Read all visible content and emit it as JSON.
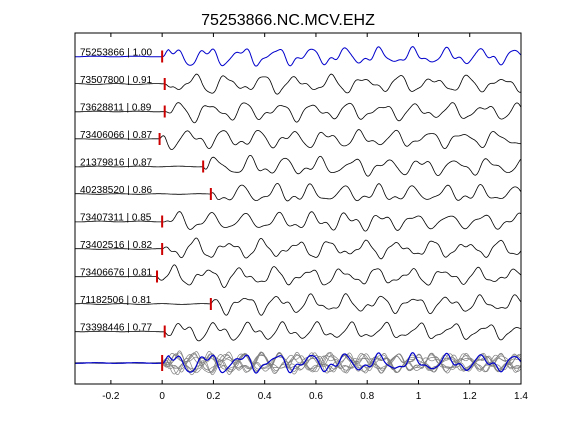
{
  "window": {
    "title": "75253866.NC.MCV.EHZ"
  },
  "chart_data": {
    "type": "line",
    "title": "75253866.NC.MCV.EHZ",
    "xlabel": "",
    "ylabel": "",
    "xlim": [
      -0.34,
      1.4
    ],
    "xticks": [
      -0.2,
      0,
      0.2,
      0.4,
      0.6,
      0.8,
      1,
      1.2,
      1.4
    ],
    "xtick_labels": [
      "-0.2",
      "0",
      "0.2",
      "0.4",
      "0.6",
      "0.8",
      "1",
      "1.2",
      "1.4"
    ],
    "grid": false,
    "colors": {
      "reference": "#0000cc",
      "trace": "#000000",
      "pick": "#cc0000",
      "stack": "#808080",
      "frame": "#000000"
    },
    "series": [
      {
        "name": "75253866 | 1.00",
        "pick_time": 0.0,
        "reference": true
      },
      {
        "name": "73507800 | 0.91",
        "pick_time": 0.01
      },
      {
        "name": "73628811 | 0.89",
        "pick_time": 0.01
      },
      {
        "name": "73406066 | 0.87",
        "pick_time": -0.01
      },
      {
        "name": "21379816 | 0.87",
        "pick_time": 0.16
      },
      {
        "name": "40238520 | 0.86",
        "pick_time": 0.19
      },
      {
        "name": "73407311 | 0.85",
        "pick_time": 0.0
      },
      {
        "name": "73402516 | 0.82",
        "pick_time": 0.0
      },
      {
        "name": "73406676 | 0.81",
        "pick_time": -0.02
      },
      {
        "name": "71182506 | 0.81",
        "pick_time": 0.19
      },
      {
        "name": "73398446 | 0.77",
        "pick_time": 0.01
      }
    ],
    "stack_pick_time": 0.0
  }
}
